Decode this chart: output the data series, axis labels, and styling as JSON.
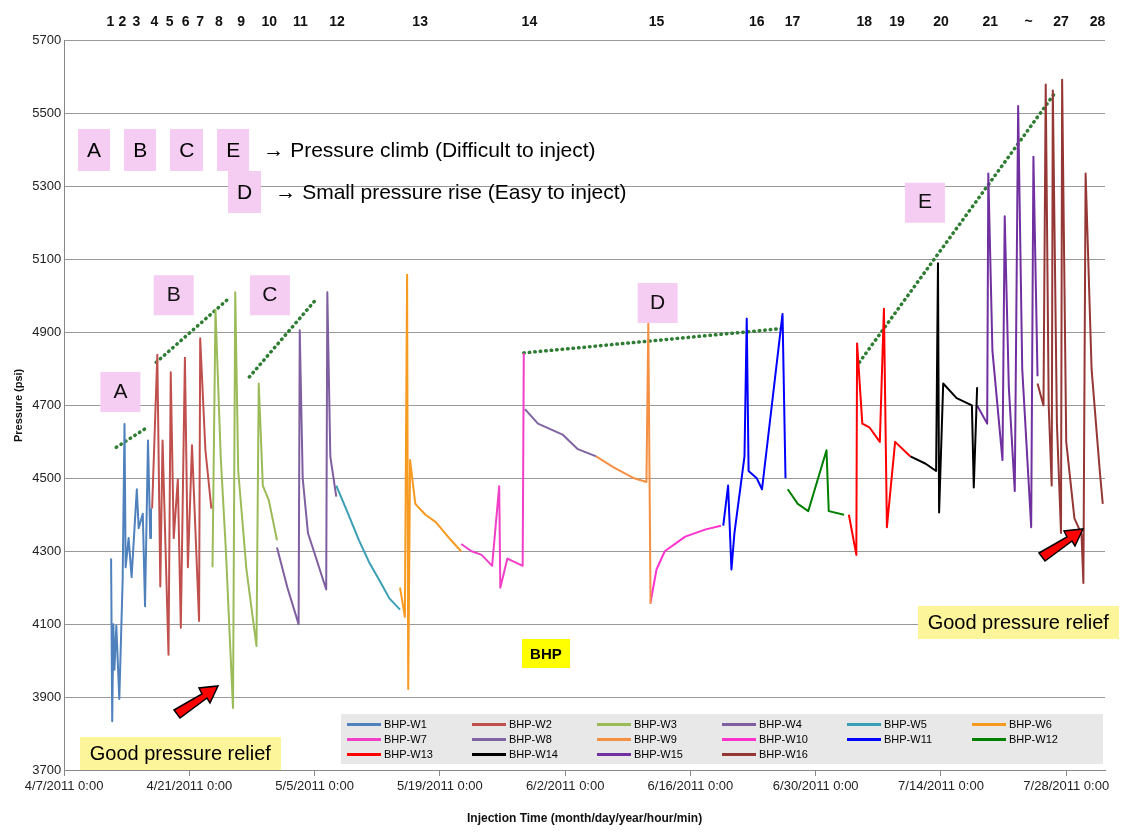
{
  "chart_data": {
    "type": "line",
    "xlabel": "Injection Time (month/day/year/hour/min)",
    "ylabel": "Pressure (psi)",
    "xlim": [
      "2011-04-07",
      "2011-08-01T08:00"
    ],
    "xticks": [
      {
        "value": "2011-04-07",
        "label": "4/7/2011 0:00"
      },
      {
        "value": "2011-04-21",
        "label": "4/21/2011 0:00"
      },
      {
        "value": "2011-05-05",
        "label": "5/5/2011 0:00"
      },
      {
        "value": "2011-05-19",
        "label": "5/19/2011 0:00"
      },
      {
        "value": "2011-06-02",
        "label": "6/2/2011 0:00"
      },
      {
        "value": "2011-06-16",
        "label": "6/16/2011 0:00"
      },
      {
        "value": "2011-06-30",
        "label": "6/30/2011 0:00"
      },
      {
        "value": "2011-07-14",
        "label": "7/14/2011 0:00"
      },
      {
        "value": "2011-07-28",
        "label": "7/28/2011 0:00"
      }
    ],
    "ylim": [
      3700,
      5700
    ],
    "yticks": [
      3700,
      3900,
      4100,
      4300,
      4500,
      4700,
      4900,
      5100,
      5300,
      5500,
      5700
    ],
    "x2lim": [
      "2011-04-07",
      "2011-08-01T08:00"
    ],
    "x2ticks": [
      {
        "value": "2011-04-12T04:00",
        "label": "1"
      },
      {
        "value": "2011-04-13T12:00",
        "label": "2"
      },
      {
        "value": "2011-04-15T02:00",
        "label": "3"
      },
      {
        "value": "2011-04-17T02:00",
        "label": "4"
      },
      {
        "value": "2011-04-18T19:00",
        "label": "5"
      },
      {
        "value": "2011-04-20T14:00",
        "label": "6"
      },
      {
        "value": "2011-04-22T05:00",
        "label": "7"
      },
      {
        "value": "2011-04-24T07:00",
        "label": "8"
      },
      {
        "value": "2011-04-26T19:00",
        "label": "9"
      },
      {
        "value": "2011-04-29T22:00",
        "label": "10"
      },
      {
        "value": "2011-05-03T10:00",
        "label": "11"
      },
      {
        "value": "2011-05-07T12:00",
        "label": "12"
      },
      {
        "value": "2011-05-16T19:00",
        "label": "13"
      },
      {
        "value": "2011-05-29T00:00",
        "label": "14"
      },
      {
        "value": "2011-06-12T05:00",
        "label": "15"
      },
      {
        "value": "2011-06-23T10:00",
        "label": "16"
      },
      {
        "value": "2011-06-27T10:00",
        "label": "17"
      },
      {
        "value": "2011-07-05T10:00",
        "label": "18"
      },
      {
        "value": "2011-07-09T02:00",
        "label": "19"
      },
      {
        "value": "2011-07-14T00:00",
        "label": "20"
      },
      {
        "value": "2011-07-19T12:00",
        "label": "21"
      },
      {
        "value": "2011-07-23T19:00",
        "label": "~"
      },
      {
        "value": "2011-07-27T10:00",
        "label": "27"
      },
      {
        "value": "2011-07-31T12:00",
        "label": "28"
      }
    ],
    "grid": "y",
    "legend": "bottom right",
    "marker": "none",
    "line_style": "solid",
    "series": [
      {
        "name": "BHP-W1",
        "color": "#4f81bd",
        "x": [
          "2011-04-12T06:00",
          "2011-04-12T09:00",
          "2011-04-12T12:00",
          "2011-04-12T15:00",
          "2011-04-12T20:00",
          "2011-04-13T04:00",
          "2011-04-13T13:00",
          "2011-04-13T18:00",
          "2011-04-13T21:00",
          "2011-04-14T05:00",
          "2011-04-14T13:00",
          "2011-04-15T03:00",
          "2011-04-15T08:00",
          "2011-04-15T19:00",
          "2011-04-16T01:00",
          "2011-04-16T09:00",
          "2011-04-16T15:00",
          "2011-04-16T17:00"
        ],
        "values": [
          4280,
          3834,
          4100,
          3975,
          4096,
          3895,
          4221,
          4649,
          4256,
          4336,
          4229,
          4470,
          4363,
          4403,
          4149,
          4604,
          4336,
          4417
        ]
      },
      {
        "name": "BHP-W2",
        "color": "#c0504d",
        "x": [
          "2011-04-16T20:00",
          "2011-04-17T10:00",
          "2011-04-17T18:00",
          "2011-04-18T00:00",
          "2011-04-18T16:00",
          "2011-04-18T22:00",
          "2011-04-19T06:00",
          "2011-04-19T17:00",
          "2011-04-20T01:00",
          "2011-04-20T12:00",
          "2011-04-20T20:00",
          "2011-04-21T07:00",
          "2011-04-22T02:00",
          "2011-04-22T05:00",
          "2011-04-22T19:00",
          "2011-04-23T11:00"
        ],
        "values": [
          4417,
          4839,
          4203,
          4604,
          4016,
          4791,
          4336,
          4497,
          4090,
          4831,
          4256,
          4591,
          4109,
          4884,
          4577,
          4417
        ]
      },
      {
        "name": "BHP-W3",
        "color": "#9bbb59",
        "x": [
          "2011-04-23T14:00",
          "2011-04-23T22:00",
          "2011-04-24T12:00",
          "2011-04-25T02:00",
          "2011-04-25T13:00",
          "2011-04-25T21:00",
          "2011-04-26T03:00",
          "2011-04-26T11:00",
          "2011-04-27T09:00",
          "2011-04-28T12:00",
          "2011-04-28T18:00",
          "2011-04-29T05:00",
          "2011-04-29T21:00",
          "2011-04-30T19:00"
        ],
        "values": [
          4256,
          4962,
          4560,
          4300,
          4050,
          3870,
          5010,
          4520,
          4250,
          4040,
          4760,
          4480,
          4440,
          4330
        ]
      },
      {
        "name": "BHP-W4",
        "color": "#7f5fa0",
        "x": [
          "2011-04-30T19:00",
          "2011-05-01T23:00",
          "2011-05-03T05:00",
          "2011-05-03T08:00",
          "2011-05-03T16:00",
          "2011-05-04T06:00",
          "2011-05-04T22:00",
          "2011-05-06T07:00",
          "2011-05-06T10:00",
          "2011-05-06T18:00",
          "2011-05-07T10:00"
        ],
        "values": [
          4310,
          4200,
          4100,
          4906,
          4500,
          4350,
          4300,
          4195,
          5010,
          4560,
          4450
        ]
      },
      {
        "name": "BHP-W5",
        "color": "#3a9fb4",
        "x": [
          "2011-05-07T10:00",
          "2011-05-08T19:00",
          "2011-05-09T23:00",
          "2011-05-11T02:00",
          "2011-05-12T06:00",
          "2011-05-13T09:00",
          "2011-05-14T13:00"
        ],
        "values": [
          4480,
          4400,
          4330,
          4270,
          4220,
          4170,
          4140
        ]
      },
      {
        "name": "BHP-W6",
        "color": "#f79a20",
        "x": [
          "2011-05-14T13:00",
          "2011-05-15T02:00",
          "2011-05-15T08:00",
          "2011-05-15T11:00",
          "2011-05-15T16:00",
          "2011-05-16T06:00",
          "2011-05-17T09:00",
          "2011-05-18T13:00",
          "2011-05-20T06:00",
          "2011-05-21T09:00"
        ],
        "values": [
          4200,
          4120,
          5058,
          3922,
          4550,
          4430,
          4400,
          4380,
          4330,
          4300
        ]
      },
      {
        "name": "BHP-W7",
        "color": "#f23fc8",
        "x": [
          "2011-05-21T09:00",
          "2011-05-22T13:00",
          "2011-05-23T16:00",
          "2011-05-24T20:00",
          "2011-05-25T15:00",
          "2011-05-25T18:00",
          "2011-05-26T13:00",
          "2011-05-28T06:00",
          "2011-05-28T09:00"
        ],
        "values": [
          4320,
          4300,
          4290,
          4260,
          4478,
          4200,
          4280,
          4260,
          4844
        ]
      },
      {
        "name": "BHP-W8",
        "color": "#8064a2",
        "x": [
          "2011-05-28T12:00",
          "2011-05-29T23:00",
          "2011-06-01T17:00",
          "2011-06-03T10:00",
          "2011-06-05T11:00"
        ],
        "values": [
          4690,
          4650,
          4620,
          4580,
          4560
        ]
      },
      {
        "name": "BHP-W9",
        "color": "#f58f42",
        "x": [
          "2011-06-05T11:00",
          "2011-06-07T10:00",
          "2011-06-09T17:00",
          "2011-06-11T02:00",
          "2011-06-11T07:00",
          "2011-06-11T13:00"
        ],
        "values": [
          4560,
          4530,
          4500,
          4490,
          4925,
          4155
        ]
      },
      {
        "name": "BHP-W10",
        "color": "#ff33cc",
        "x": [
          "2011-06-11T13:00",
          "2011-06-12T05:00",
          "2011-06-13T03:00",
          "2011-06-15T10:00",
          "2011-06-17T17:00",
          "2011-06-19T10:00"
        ],
        "values": [
          4160,
          4250,
          4300,
          4340,
          4360,
          4370
        ]
      },
      {
        "name": "BHP-W11",
        "color": "#0000ff",
        "x": [
          "2011-06-19T16:00",
          "2011-06-20T05:00",
          "2011-06-20T14:00",
          "2011-06-20T22:00",
          "2011-06-22T01:00",
          "2011-06-22T07:00",
          "2011-06-22T12:00",
          "2011-06-23T10:00",
          "2011-06-24T00:00",
          "2011-06-26T07:00",
          "2011-06-26T15:00"
        ],
        "values": [
          4370,
          4480,
          4250,
          4350,
          4560,
          4938,
          4520,
          4500,
          4470,
          4951,
          4500
        ]
      },
      {
        "name": "BHP-W12",
        "color": "#008000",
        "x": [
          "2011-06-26T21:00",
          "2011-06-28T00:00",
          "2011-06-29T04:00",
          "2011-07-01T05:00",
          "2011-07-01T11:00",
          "2011-07-03T04:00"
        ],
        "values": [
          4470,
          4430,
          4410,
          4577,
          4410,
          4400
        ]
      },
      {
        "name": "BHP-W13",
        "color": "#ff0000",
        "x": [
          "2011-07-03T17:00",
          "2011-07-04T13:00",
          "2011-07-04T15:00",
          "2011-07-05T05:00",
          "2011-07-06T00:00",
          "2011-07-07T04:00",
          "2011-07-07T15:00",
          "2011-07-07T23:00",
          "2011-07-08T21:00",
          "2011-07-10T14:00"
        ],
        "values": [
          4400,
          4290,
          4870,
          4650,
          4640,
          4600,
          4965,
          4366,
          4600,
          4560
        ]
      },
      {
        "name": "BHP-W14",
        "color": "#000000",
        "x": [
          "2011-07-10T14:00",
          "2011-07-12T07:00",
          "2011-07-13T11:00",
          "2011-07-13T16:00",
          "2011-07-13T19:00",
          "2011-07-14T06:00",
          "2011-07-15T18:00",
          "2011-07-17T11:00",
          "2011-07-17T16:00",
          "2011-07-18T01:00"
        ],
        "values": [
          4560,
          4540,
          4520,
          5090,
          4406,
          4760,
          4720,
          4700,
          4475,
          4750
        ]
      },
      {
        "name": "BHP-W15",
        "color": "#7030a0",
        "x": [
          "2011-07-18T01:00",
          "2011-07-19T04:00",
          "2011-07-19T07:00",
          "2011-07-19T18:00",
          "2011-07-20T21:00",
          "2011-07-21T03:00",
          "2011-07-21T14:00",
          "2011-07-22T06:00",
          "2011-07-22T15:00",
          "2011-07-23T02:00",
          "2011-07-24T02:00",
          "2011-07-24T08:00",
          "2011-07-24T19:00"
        ],
        "values": [
          4700,
          4650,
          5336,
          4850,
          4550,
          5219,
          4750,
          4465,
          5521,
          4800,
          4366,
          5382,
          4780
        ]
      },
      {
        "name": "BHP-W16",
        "color": "#953735",
        "x": [
          "2011-07-24T19:00",
          "2011-07-25T11:00",
          "2011-07-25T17:00",
          "2011-07-26T01:00",
          "2011-07-26T09:00",
          "2011-07-26T12:00",
          "2011-07-26T23:00",
          "2011-07-27T10:00",
          "2011-07-27T13:00",
          "2011-07-28T00:00",
          "2011-07-28T22:00",
          "2011-07-29T17:00",
          "2011-07-29T22:00",
          "2011-07-30T04:00",
          "2011-07-30T20:00",
          "2011-07-31T18:00",
          "2011-08-01T02:00"
        ],
        "values": [
          4760,
          4700,
          5580,
          4700,
          4480,
          5564,
          4650,
          4350,
          5593,
          4600,
          4390,
          4347,
          4213,
          5336,
          4800,
          4520,
          4430
        ]
      },
      {
        "type": "line",
        "line_style": "dotted",
        "color": "#2e7d32",
        "x": [
          "2011-04-12T20:00",
          "2011-04-16T09:00"
        ],
        "values": [
          4585,
          4641
        ]
      },
      {
        "type": "line",
        "line_style": "dotted",
        "color": "#2e7d32",
        "x": [
          "2011-04-17T07:00",
          "2011-04-25T07:00"
        ],
        "values": [
          4818,
          4991
        ]
      },
      {
        "type": "line",
        "line_style": "dotted",
        "color": "#2e7d32",
        "x": [
          "2011-04-27T17:00",
          "2011-05-05T04:00"
        ],
        "values": [
          4778,
          4991
        ]
      },
      {
        "type": "line",
        "line_style": "dotted",
        "color": "#2e7d32",
        "x": [
          "2011-05-28T09:00",
          "2011-06-26T07:00"
        ],
        "values": [
          4844,
          4911
        ]
      },
      {
        "type": "line",
        "line_style": "dotted",
        "color": "#2e7d32",
        "x": [
          "2011-07-04T21:00",
          "2011-07-26T15:00"
        ],
        "values": [
          4818,
          5553
        ]
      }
    ],
    "annotations": [
      "A B C E → Pressure climb (Difficult to inject)",
      "D → Small pressure rise  (Easy to inject)",
      {
        "text": "A",
        "x": "2011-04-13T07:00",
        "y": 4737
      },
      {
        "text": "B",
        "x": "2011-04-19T06:00",
        "y": 5002
      },
      {
        "text": "C",
        "x": "2011-04-30T00:00",
        "y": 5002
      },
      {
        "text": "D",
        "x": "2011-06-12T08:00",
        "y": 4981
      },
      {
        "text": "E",
        "x": "2011-07-12T05:00",
        "y": 5256
      },
      "BHP",
      "Good pressure relief",
      "Good pressure relief"
    ]
  }
}
